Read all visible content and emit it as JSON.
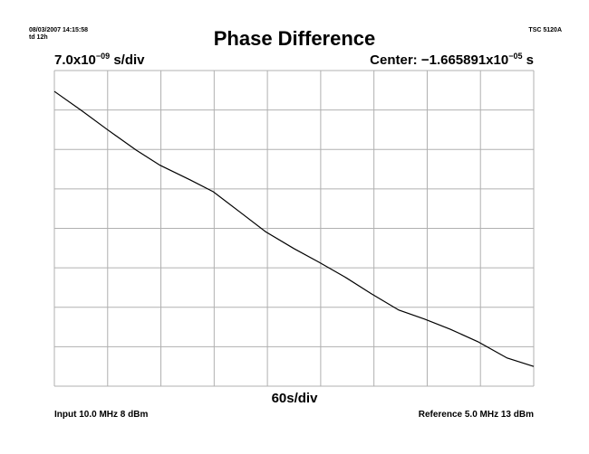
{
  "chart_data": {
    "type": "line",
    "timestamp": "08/03/2007 14:15:58",
    "duration": "td 12h",
    "title": "Phase Difference",
    "instrument": "TSC 5120A",
    "y_scale_label": {
      "mantissa": "7.0x10",
      "exponent": "−09",
      "unit": " s/div"
    },
    "center_label": {
      "mantissa": "Center: −1.665891x10",
      "exponent": "−05",
      "unit": " s"
    },
    "x_scale_label": "60s/div",
    "input_label": "Input 10.0 MHz 8 dBm",
    "reference_label": "Reference 5.0 MHz 13 dBm",
    "x": [
      0,
      30.6,
      59,
      92,
      119,
      153,
      179,
      209,
      238,
      270,
      298,
      327,
      357,
      388,
      417,
      446,
      477,
      510,
      540
    ],
    "series": [
      {
        "color": "#000000",
        "values": [
          24.3,
          20.9,
          17.6,
          13.9,
          11.2,
          8.6,
          6.5,
          2.9,
          -0.6,
          -3.6,
          -6.0,
          -8.6,
          -11.6,
          -14.5,
          -16.1,
          -17.9,
          -20.1,
          -23.0,
          -24.5
        ]
      }
    ],
    "xlim": [
      0,
      540
    ],
    "xticks": [
      0,
      60,
      120,
      180,
      240,
      300,
      360,
      420,
      480,
      540
    ],
    "ylim": [
      -28,
      28
    ],
    "yticks": [
      -28,
      -21,
      -14,
      -7,
      0,
      7,
      14,
      21,
      28
    ],
    "grid": true
  }
}
